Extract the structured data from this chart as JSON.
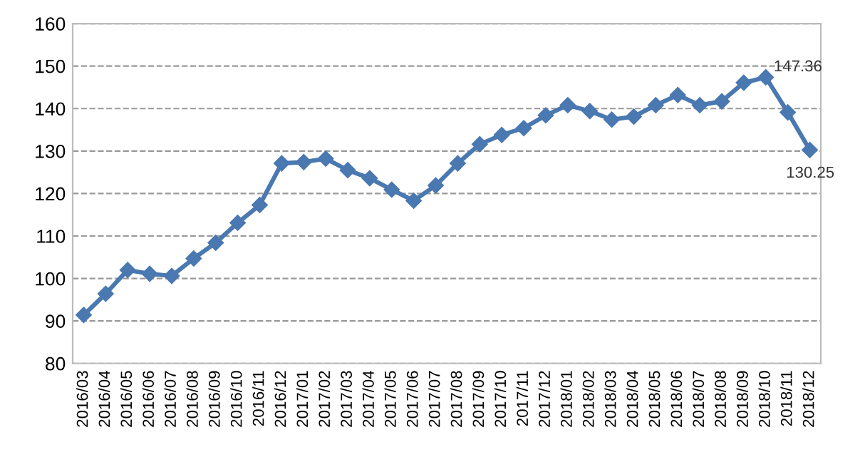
{
  "chart_data": {
    "type": "line",
    "categories": [
      "2016/03",
      "2016/04",
      "2016/05",
      "2016/06",
      "2016/07",
      "2016/08",
      "2016/09",
      "2016/10",
      "2016/11",
      "2016/12",
      "2017/01",
      "2017/02",
      "2017/03",
      "2017/04",
      "2017/05",
      "2017/06",
      "2017/07",
      "2017/08",
      "2017/09",
      "2017/10",
      "2017/11",
      "2017/12",
      "2018/01",
      "2018/02",
      "2018/03",
      "2018/04",
      "2018/05",
      "2018/06",
      "2018/07",
      "2018/08",
      "2018/09",
      "2018/10",
      "2018/11",
      "2018/12"
    ],
    "series": [
      {
        "color": "#4a78b0",
        "values": [
          91.4,
          96.4,
          102.0,
          101.1,
          100.6,
          104.7,
          108.4,
          113.1,
          117.3,
          127.1,
          127.4,
          128.2,
          125.5,
          123.6,
          120.9,
          118.3,
          121.9,
          127.1,
          131.6,
          133.8,
          135.4,
          138.4,
          140.8,
          139.4,
          137.4,
          138.1,
          140.8,
          143.2,
          140.8,
          141.7,
          146.1,
          147.36,
          139.1,
          130.25
        ],
        "value_labels": [
          null,
          null,
          null,
          null,
          null,
          null,
          null,
          null,
          null,
          null,
          null,
          null,
          null,
          null,
          null,
          null,
          null,
          null,
          null,
          null,
          null,
          null,
          null,
          null,
          null,
          null,
          null,
          null,
          null,
          null,
          null,
          "147.36",
          null,
          "130.25"
        ]
      }
    ],
    "ylim": [
      80,
      160
    ],
    "yticks": [
      80,
      90,
      100,
      110,
      120,
      130,
      140,
      150,
      160
    ],
    "grid": "y",
    "marker": "diamond",
    "line_style": "solid",
    "legend": false
  }
}
